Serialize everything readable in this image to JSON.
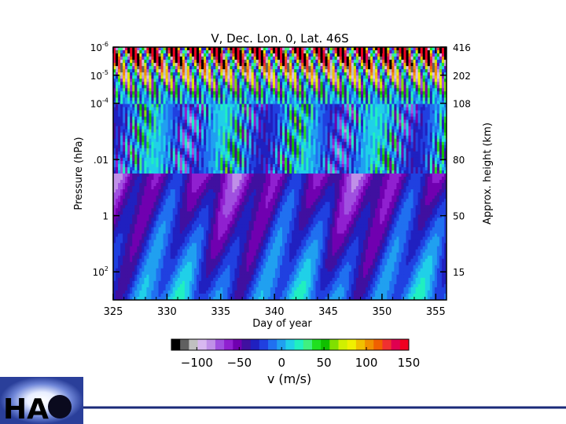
{
  "chart_data": {
    "type": "heatmap",
    "title": "V, Dec. Lon. 0, Lat. 46S",
    "xlabel": "Day of year",
    "ylabel": "Pressure (hPa)",
    "y2label": "Approx. height (km)",
    "xlim": [
      325,
      356
    ],
    "x_ticks": [
      325,
      330,
      335,
      340,
      345,
      350,
      355
    ],
    "y_scale": "log",
    "ylim": [
      1000,
      1e-06
    ],
    "y_ticks": [
      {
        "value": 100,
        "label": "10",
        "sup": "2"
      },
      {
        "value": 1,
        "label": "1",
        "sup": ""
      },
      {
        "value": 0.01,
        "label": ".01",
        "sup": ""
      },
      {
        "value": 0.0001,
        "label": "10",
        "sup": "-4"
      },
      {
        "value": 1e-05,
        "label": "10",
        "sup": "-5"
      },
      {
        "value": 1e-06,
        "label": "10",
        "sup": "-6"
      }
    ],
    "y2_ticks": [
      {
        "pressure": 100,
        "label": "15"
      },
      {
        "pressure": 1,
        "label": "50"
      },
      {
        "pressure": 0.01,
        "label": "80"
      },
      {
        "pressure": 0.0001,
        "label": "108"
      },
      {
        "pressure": 1e-05,
        "label": "202"
      },
      {
        "pressure": 1e-06,
        "label": "416"
      }
    ],
    "colorbar": {
      "label": "v (m/s)",
      "range": [
        -130,
        150
      ],
      "ticks": [
        -100,
        -50,
        0,
        50,
        100,
        150
      ],
      "colors": [
        "#000000",
        "#606060",
        "#c0c0c0",
        "#d8b8f0",
        "#c090e8",
        "#a050e0",
        "#9020d0",
        "#7000b0",
        "#4010a0",
        "#2020c0",
        "#2040e0",
        "#2070f0",
        "#20a0f0",
        "#20d0e8",
        "#20f0c0",
        "#40f080",
        "#20e020",
        "#10c000",
        "#80e000",
        "#d0f000",
        "#f0f000",
        "#f0c000",
        "#f09000",
        "#f06000",
        "#f03030",
        "#e00050",
        "#f00020"
      ]
    },
    "colorbar_tick_labels": [
      "−100",
      "−50",
      "0",
      "50",
      "100",
      "150"
    ]
  },
  "logo": {
    "text": "HA"
  }
}
